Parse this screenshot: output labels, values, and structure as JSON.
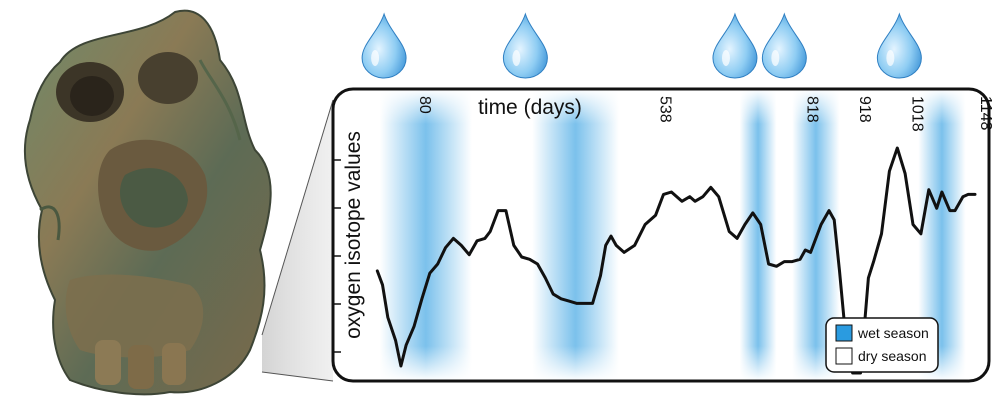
{
  "figure": {
    "x_axis_title": "time (days)",
    "y_axis_title": "oxygen isotope values",
    "tick_labels": [
      "80",
      "538",
      "818",
      "918",
      "1018",
      "1148"
    ],
    "legend": {
      "wet_label": "wet season",
      "dry_label": "dry season",
      "wet_color": "#2a9be0",
      "dry_color": "#ffffff"
    },
    "line_color": "#111111",
    "icons": [
      "fossil-skull-image",
      "water-drop-icon",
      "zoom-wedge"
    ]
  },
  "chart_data": {
    "type": "line",
    "xlabel": "time (days)",
    "ylabel": "oxygen isotope values",
    "x_ticks": [
      80,
      538,
      818,
      918,
      1018,
      1148
    ],
    "xlim": [
      0,
      1148
    ],
    "ylim": [
      0,
      1
    ],
    "wet_seasons_days": [
      [
        15,
        190
      ],
      [
        305,
        470
      ],
      [
        700,
        770
      ],
      [
        800,
        890
      ],
      [
        1040,
        1130
      ]
    ],
    "rain_events_days": [
      23,
      292,
      691,
      785,
      1004
    ],
    "series": [
      {
        "x": [
          10,
          20,
          30,
          45,
          55,
          65,
          80,
          95,
          110,
          125,
          140,
          155,
          170,
          185,
          200,
          215,
          225,
          240,
          255,
          270,
          285,
          300,
          315,
          330,
          345,
          360,
          375,
          390,
          405,
          420,
          435,
          445,
          455,
          465,
          480,
          500,
          520,
          540,
          555,
          570,
          590,
          605,
          615,
          630,
          645,
          660,
          680,
          695,
          710,
          725,
          740,
          755,
          770,
          785,
          800,
          815,
          825,
          835,
          855,
          870,
          880,
          890,
          900,
          915,
          930,
          945,
          955,
          970,
          985,
          1000,
          1015,
          1030,
          1045,
          1060,
          1075,
          1085,
          1100,
          1110,
          1125,
          1135,
          1148
        ],
        "y": [
          0.44,
          0.38,
          0.24,
          0.14,
          0.03,
          0.12,
          0.2,
          0.32,
          0.43,
          0.47,
          0.54,
          0.58,
          0.55,
          0.51,
          0.57,
          0.58,
          0.61,
          0.7,
          0.7,
          0.55,
          0.5,
          0.49,
          0.47,
          0.41,
          0.34,
          0.32,
          0.31,
          0.3,
          0.3,
          0.3,
          0.42,
          0.55,
          0.59,
          0.55,
          0.52,
          0.55,
          0.64,
          0.68,
          0.77,
          0.78,
          0.74,
          0.76,
          0.74,
          0.76,
          0.8,
          0.76,
          0.61,
          0.58,
          0.64,
          0.69,
          0.64,
          0.47,
          0.46,
          0.48,
          0.48,
          0.49,
          0.53,
          0.52,
          0.64,
          0.7,
          0.66,
          0.44,
          0.2,
          0.0,
          0.0,
          0.41,
          0.48,
          0.6,
          0.87,
          0.97,
          0.86,
          0.64,
          0.6,
          0.79,
          0.71,
          0.78,
          0.7,
          0.7,
          0.76,
          0.77,
          0.77
        ]
      }
    ]
  }
}
